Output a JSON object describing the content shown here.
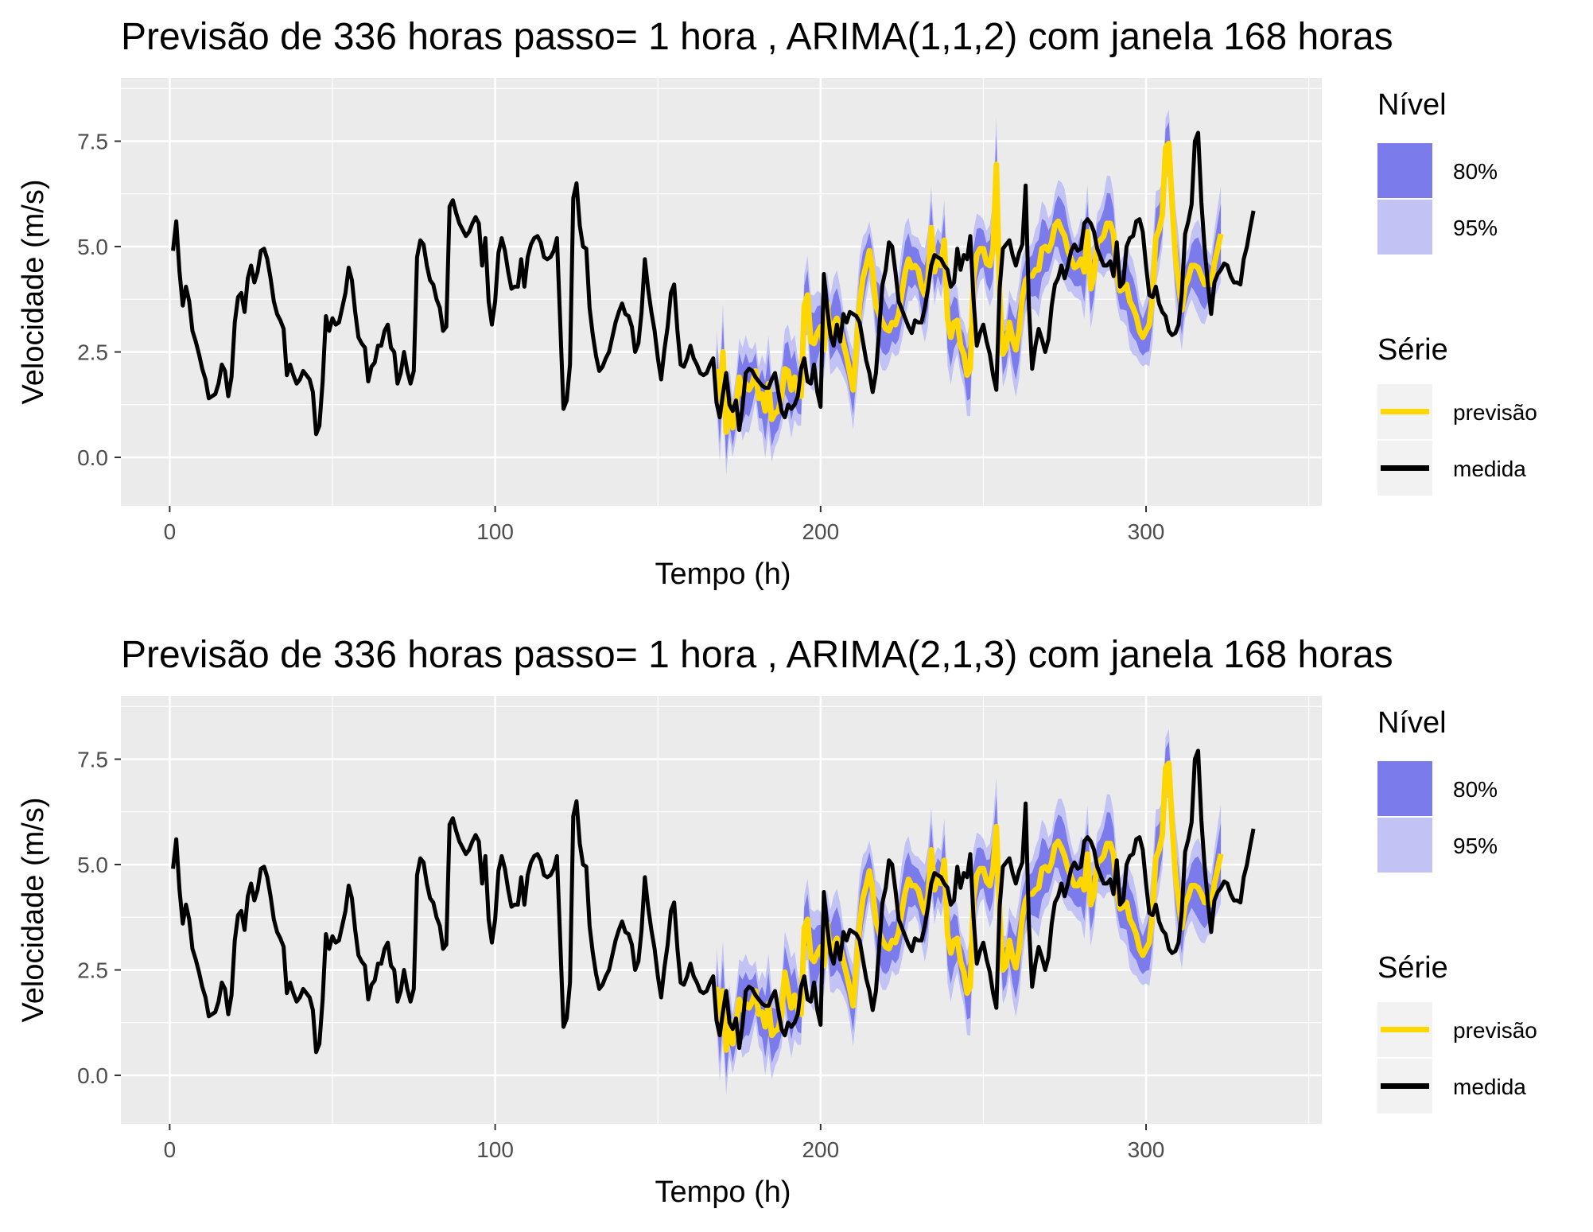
{
  "colors": {
    "panel_bg": "#ebebeb",
    "grid_major": "#ffffff",
    "band80": "#7b7bec",
    "band95": "#c2c2f4",
    "forecast": "#ffd700",
    "measured": "#000000",
    "tick_text": "#4d4d4d",
    "legend_key_bg": "#f2f2f2"
  },
  "chart_data": [
    {
      "type": "line",
      "title": "Previsão de 336 horas passo= 1 hora , ARIMA(1,1,2) com janela 168 horas",
      "xlabel": "Tempo (h)",
      "ylabel": "Velocidade (m/s)",
      "xlim": [
        -15,
        354
      ],
      "ylim": [
        -1.15,
        9.0
      ],
      "x_ticks": [
        0,
        100,
        200,
        300
      ],
      "x_tick_labels": [
        "0",
        "100",
        "200",
        "300"
      ],
      "y_ticks": [
        0,
        2.5,
        5,
        7.5
      ],
      "y_tick_labels": [
        "0.0",
        "2.5",
        "5.0",
        "7.5"
      ],
      "legend_fill_title": "Nível",
      "legend_fill": [
        {
          "label": "80%",
          "color": "#7b7bec"
        },
        {
          "label": "95%",
          "color": "#c2c2f4"
        }
      ],
      "legend_line_title": "Série",
      "legend_lines": [
        {
          "label": "previsão",
          "color": "#ffd700"
        },
        {
          "label": "medida",
          "color": "#000000"
        }
      ],
      "forecast_start": 168,
      "band80_halfwidth": 0.58,
      "band95_halfwidth": 0.92,
      "forecast_offset": 0.06,
      "series_medida": {
        "x_start": 1,
        "step": 1,
        "values": [
          4.9,
          5.6,
          4.4,
          3.6,
          4.05,
          3.7,
          3.0,
          2.75,
          2.45,
          2.1,
          1.85,
          1.4,
          1.45,
          1.5,
          1.75,
          2.2,
          2.05,
          1.45,
          1.9,
          3.2,
          3.8,
          3.9,
          3.45,
          4.25,
          4.55,
          4.15,
          4.4,
          4.9,
          4.95,
          4.7,
          4.25,
          3.7,
          3.4,
          3.25,
          3.05,
          1.95,
          2.2,
          1.95,
          1.75,
          1.85,
          2.05,
          1.95,
          1.85,
          1.55,
          0.55,
          0.75,
          1.8,
          3.35,
          3.0,
          3.3,
          3.15,
          3.2,
          3.55,
          3.9,
          4.5,
          4.2,
          3.45,
          2.85,
          2.7,
          2.6,
          1.8,
          2.15,
          2.25,
          2.65,
          2.65,
          3.0,
          3.15,
          2.6,
          2.5,
          1.75,
          2.0,
          2.5,
          2.05,
          1.75,
          2.05,
          4.75,
          5.15,
          5.05,
          4.55,
          4.2,
          4.1,
          3.75,
          3.55,
          3.0,
          3.1,
          5.95,
          6.1,
          5.8,
          5.55,
          5.4,
          5.25,
          5.35,
          5.55,
          5.7,
          5.55,
          4.55,
          5.2,
          3.7,
          3.15,
          3.7,
          4.85,
          5.2,
          4.9,
          4.4,
          4.0,
          4.05,
          4.05,
          4.7,
          4.05,
          4.75,
          5.05,
          5.2,
          5.25,
          5.1,
          4.75,
          4.7,
          4.75,
          4.9,
          5.2,
          3.2,
          1.15,
          1.35,
          2.2,
          6.15,
          6.5,
          5.5,
          5.0,
          4.95,
          3.55,
          2.9,
          2.4,
          2.05,
          2.15,
          2.35,
          2.5,
          2.85,
          3.2,
          3.45,
          3.65,
          3.4,
          3.35,
          3.1,
          2.5,
          2.7,
          3.45,
          4.7,
          4.0,
          3.45,
          3.0,
          2.35,
          1.85,
          2.55,
          3.1,
          3.9,
          4.1,
          3.0,
          2.2,
          2.15,
          2.35,
          2.65,
          2.35,
          2.2,
          2.0,
          1.95,
          2.0,
          2.2,
          2.35,
          1.3,
          0.95,
          1.5,
          2.0,
          1.25,
          1.1,
          1.35,
          0.65,
          1.2,
          2.0,
          2.1,
          2.05,
          1.9,
          1.8,
          1.7,
          1.65,
          1.65,
          1.85,
          2.0,
          1.55,
          1.1,
          0.95,
          1.25,
          1.15,
          1.25,
          1.45,
          2.1,
          2.35,
          1.8,
          1.75,
          2.2,
          1.55,
          1.2,
          4.35,
          3.55,
          2.9,
          2.65,
          3.15,
          2.75,
          3.4,
          3.2,
          3.45,
          3.4,
          3.35,
          3.2,
          2.75,
          2.3,
          2.0,
          1.55,
          2.0,
          3.05,
          4.1,
          4.45,
          5.1,
          5.0,
          4.4,
          3.7,
          3.5,
          3.3,
          3.1,
          2.95,
          3.25,
          3.2,
          3.2,
          3.55,
          4.0,
          4.55,
          4.8,
          4.75,
          4.7,
          4.55,
          4.45,
          4.05,
          4.15,
          4.95,
          4.45,
          4.8,
          4.7,
          5.25,
          3.75,
          2.65,
          2.95,
          3.15,
          2.75,
          2.45,
          1.95,
          1.6,
          4.0,
          4.95,
          5.05,
          5.15,
          4.8,
          4.55,
          4.85,
          5.05,
          6.45,
          3.6,
          2.1,
          2.65,
          3.05,
          2.8,
          2.5,
          2.8,
          3.6,
          4.1,
          4.25,
          4.55,
          4.25,
          4.55,
          4.9,
          5.05,
          4.9,
          4.95,
          5.55,
          5.65,
          5.55,
          5.35,
          4.95,
          4.75,
          4.55,
          4.55,
          4.65,
          4.3,
          5.1,
          4.05,
          4.15,
          5.0,
          5.2,
          5.25,
          5.6,
          5.65,
          5.35,
          4.55,
          3.85,
          3.8,
          4.05,
          3.65,
          3.45,
          3.35,
          3.0,
          2.9,
          2.95,
          3.15,
          3.9,
          5.3,
          5.6,
          6.0,
          7.5,
          7.7,
          6.05,
          4.95,
          4.1,
          3.4,
          4.15,
          4.35,
          4.45,
          4.6,
          4.55,
          4.3,
          4.15,
          4.15,
          4.1,
          4.7,
          5.0,
          5.45,
          5.85
        ]
      },
      "series_previsao": {
        "x_start": 168,
        "step": 1,
        "values": [
          2.1,
          1.0,
          2.5,
          0.6,
          1.3,
          0.7,
          1.2,
          1.9,
          1.5,
          1.75,
          1.6,
          1.75,
          2.05,
          1.4,
          1.5,
          1.1,
          1.75,
          0.9,
          1.05,
          1.1,
          1.45,
          2.1,
          2.05,
          1.6,
          1.9,
          1.55,
          1.45,
          3.6,
          3.85,
          2.75,
          2.7,
          2.95,
          3.1,
          2.55,
          3.65,
          2.9,
          3.15,
          3.3,
          3.05,
          2.7,
          2.4,
          2.0,
          1.6,
          2.6,
          3.65,
          4.25,
          4.55,
          4.9,
          4.4,
          3.6,
          3.4,
          3.2,
          3.05,
          3.0,
          3.2,
          3.15,
          3.4,
          3.9,
          4.4,
          4.7,
          4.5,
          4.55,
          4.45,
          4.05,
          3.85,
          4.25,
          5.45,
          4.4,
          4.75,
          4.55,
          5.15,
          3.3,
          2.85,
          3.2,
          3.25,
          2.65,
          2.45,
          1.95,
          2.1,
          4.25,
          4.8,
          4.95,
          4.95,
          4.6,
          4.55,
          4.95,
          6.95,
          3.9,
          2.45,
          2.6,
          3.2,
          2.8,
          2.55,
          3.0,
          3.8,
          4.2,
          4.3,
          4.3,
          4.45,
          4.45,
          4.95,
          5.0,
          4.9,
          5.1,
          5.5,
          5.6,
          5.4,
          5.25,
          4.9,
          4.7,
          4.5,
          4.55,
          4.7,
          4.4,
          5.35,
          4.0,
          4.3,
          5.1,
          5.15,
          5.25,
          5.55,
          5.55,
          5.3,
          4.4,
          3.95,
          4.0,
          4.1,
          3.7,
          3.55,
          3.35,
          3.0,
          2.85,
          3.0,
          3.15,
          3.85,
          5.2,
          5.4,
          5.75,
          7.35,
          7.45,
          6.0,
          4.8,
          4.15,
          3.5,
          4.05,
          4.25,
          4.55,
          4.55,
          4.5,
          4.3,
          4.1,
          4.15,
          4.1,
          4.6,
          4.95,
          5.3
        ]
      }
    },
    {
      "type": "line",
      "title": "Previsão de 336 horas passo= 1 hora , ARIMA(2,1,3) com janela 168 horas",
      "xlabel": "Tempo (h)",
      "ylabel": "Velocidade (m/s)",
      "xlim": [
        -15,
        354
      ],
      "ylim": [
        -1.15,
        9.0
      ],
      "x_ticks": [
        0,
        100,
        200,
        300
      ],
      "x_tick_labels": [
        "0",
        "100",
        "200",
        "300"
      ],
      "y_ticks": [
        0,
        2.5,
        5,
        7.5
      ],
      "y_tick_labels": [
        "0.0",
        "2.5",
        "5.0",
        "7.5"
      ],
      "legend_fill_title": "Nível",
      "legend_fill": [
        {
          "label": "80%",
          "color": "#7b7bec"
        },
        {
          "label": "95%",
          "color": "#c2c2f4"
        }
      ],
      "legend_line_title": "Série",
      "legend_lines": [
        {
          "label": "previsão",
          "color": "#ffd700"
        },
        {
          "label": "medida",
          "color": "#000000"
        }
      ],
      "forecast_start": 168,
      "band80_halfwidth": 0.6,
      "band95_halfwidth": 0.95,
      "forecast_offset": -0.05,
      "series_medida": {
        "x_start": 1,
        "step": 1,
        "values": [
          4.9,
          5.6,
          4.4,
          3.6,
          4.05,
          3.7,
          3.0,
          2.75,
          2.45,
          2.1,
          1.85,
          1.4,
          1.45,
          1.5,
          1.75,
          2.2,
          2.05,
          1.45,
          1.9,
          3.2,
          3.8,
          3.9,
          3.45,
          4.25,
          4.55,
          4.15,
          4.4,
          4.9,
          4.95,
          4.7,
          4.25,
          3.7,
          3.4,
          3.25,
          3.05,
          1.95,
          2.2,
          1.95,
          1.75,
          1.85,
          2.05,
          1.95,
          1.85,
          1.55,
          0.55,
          0.75,
          1.8,
          3.35,
          3.0,
          3.3,
          3.15,
          3.2,
          3.55,
          3.9,
          4.5,
          4.2,
          3.45,
          2.85,
          2.7,
          2.6,
          1.8,
          2.15,
          2.25,
          2.65,
          2.65,
          3.0,
          3.15,
          2.6,
          2.5,
          1.75,
          2.0,
          2.5,
          2.05,
          1.75,
          2.05,
          4.75,
          5.15,
          5.05,
          4.55,
          4.2,
          4.1,
          3.75,
          3.55,
          3.0,
          3.1,
          5.95,
          6.1,
          5.8,
          5.55,
          5.4,
          5.25,
          5.35,
          5.55,
          5.7,
          5.55,
          4.55,
          5.2,
          3.7,
          3.15,
          3.7,
          4.85,
          5.2,
          4.9,
          4.4,
          4.0,
          4.05,
          4.05,
          4.7,
          4.05,
          4.75,
          5.05,
          5.2,
          5.25,
          5.1,
          4.75,
          4.7,
          4.75,
          4.9,
          5.2,
          3.2,
          1.15,
          1.35,
          2.2,
          6.15,
          6.5,
          5.5,
          5.0,
          4.95,
          3.55,
          2.9,
          2.4,
          2.05,
          2.15,
          2.35,
          2.5,
          2.85,
          3.2,
          3.45,
          3.65,
          3.4,
          3.35,
          3.1,
          2.5,
          2.7,
          3.45,
          4.7,
          4.0,
          3.45,
          3.0,
          2.35,
          1.85,
          2.55,
          3.1,
          3.9,
          4.1,
          3.0,
          2.2,
          2.15,
          2.35,
          2.65,
          2.35,
          2.2,
          2.0,
          1.95,
          2.0,
          2.2,
          2.35,
          1.3,
          0.95,
          1.5,
          2.0,
          1.25,
          1.1,
          1.35,
          0.65,
          1.2,
          2.0,
          2.1,
          2.05,
          1.9,
          1.8,
          1.7,
          1.65,
          1.65,
          1.85,
          2.0,
          1.55,
          1.1,
          0.95,
          1.25,
          1.15,
          1.25,
          1.45,
          2.1,
          2.35,
          1.8,
          1.75,
          2.2,
          1.55,
          1.2,
          4.35,
          3.55,
          2.9,
          2.65,
          3.15,
          2.75,
          3.4,
          3.2,
          3.45,
          3.4,
          3.35,
          3.2,
          2.75,
          2.3,
          2.0,
          1.55,
          2.0,
          3.05,
          4.1,
          4.45,
          5.1,
          5.0,
          4.4,
          3.7,
          3.5,
          3.3,
          3.1,
          2.95,
          3.25,
          3.2,
          3.2,
          3.55,
          4.0,
          4.55,
          4.8,
          4.75,
          4.7,
          4.55,
          4.45,
          4.05,
          4.15,
          4.95,
          4.45,
          4.8,
          4.7,
          5.25,
          3.75,
          2.65,
          2.95,
          3.15,
          2.75,
          2.45,
          1.95,
          1.6,
          4.0,
          4.95,
          5.05,
          5.15,
          4.8,
          4.55,
          4.85,
          5.05,
          6.45,
          3.6,
          2.1,
          2.65,
          3.05,
          2.8,
          2.5,
          2.8,
          3.6,
          4.1,
          4.25,
          4.55,
          4.25,
          4.55,
          4.9,
          5.05,
          4.9,
          4.95,
          5.55,
          5.65,
          5.55,
          5.35,
          4.95,
          4.75,
          4.55,
          4.55,
          4.65,
          4.3,
          5.1,
          4.05,
          4.15,
          5.0,
          5.2,
          5.25,
          5.6,
          5.65,
          5.35,
          4.55,
          3.85,
          3.8,
          4.05,
          3.65,
          3.45,
          3.35,
          3.0,
          2.9,
          2.95,
          3.15,
          3.9,
          5.3,
          5.6,
          6.0,
          7.5,
          7.7,
          6.05,
          4.95,
          4.1,
          3.4,
          4.15,
          4.35,
          4.45,
          4.6,
          4.55,
          4.3,
          4.15,
          4.15,
          4.1,
          4.7,
          5.0,
          5.45,
          5.85
        ]
      },
      "series_previsao": {
        "x_start": 168,
        "step": 1,
        "values": [
          2.1,
          1.0,
          2.0,
          0.6,
          1.3,
          0.75,
          1.2,
          1.8,
          1.55,
          1.7,
          1.6,
          1.75,
          2.0,
          1.45,
          1.5,
          1.15,
          1.7,
          0.95,
          1.05,
          1.1,
          1.45,
          2.45,
          2.0,
          1.6,
          1.9,
          1.55,
          1.45,
          3.5,
          3.7,
          2.8,
          2.7,
          2.9,
          3.05,
          2.6,
          3.6,
          2.95,
          3.1,
          3.25,
          3.05,
          2.7,
          2.4,
          2.05,
          1.65,
          2.6,
          3.6,
          4.2,
          4.5,
          4.85,
          4.4,
          3.65,
          3.4,
          3.2,
          3.05,
          3.0,
          3.2,
          3.15,
          3.4,
          3.9,
          4.35,
          4.65,
          4.5,
          4.5,
          4.4,
          4.1,
          3.85,
          4.25,
          5.35,
          4.4,
          4.7,
          4.55,
          5.1,
          3.35,
          2.9,
          3.2,
          3.25,
          2.7,
          2.45,
          1.95,
          2.1,
          4.2,
          4.75,
          4.9,
          4.9,
          4.6,
          4.5,
          4.9,
          5.9,
          3.9,
          2.5,
          2.6,
          3.2,
          2.8,
          2.55,
          3.0,
          3.75,
          4.15,
          4.3,
          4.3,
          4.4,
          4.45,
          4.9,
          4.95,
          4.85,
          5.05,
          5.45,
          5.55,
          5.4,
          5.2,
          4.9,
          4.7,
          4.5,
          4.5,
          4.65,
          4.4,
          5.25,
          4.05,
          4.3,
          5.05,
          5.1,
          5.2,
          5.5,
          5.5,
          5.25,
          4.4,
          3.95,
          4.0,
          4.1,
          3.7,
          3.55,
          3.35,
          3.0,
          2.85,
          3.0,
          3.15,
          3.85,
          5.15,
          5.35,
          5.7,
          7.3,
          7.4,
          5.95,
          4.8,
          4.15,
          3.5,
          4.05,
          4.25,
          4.5,
          4.5,
          4.45,
          4.3,
          4.1,
          4.1,
          4.05,
          4.55,
          4.9,
          5.25
        ]
      }
    }
  ]
}
